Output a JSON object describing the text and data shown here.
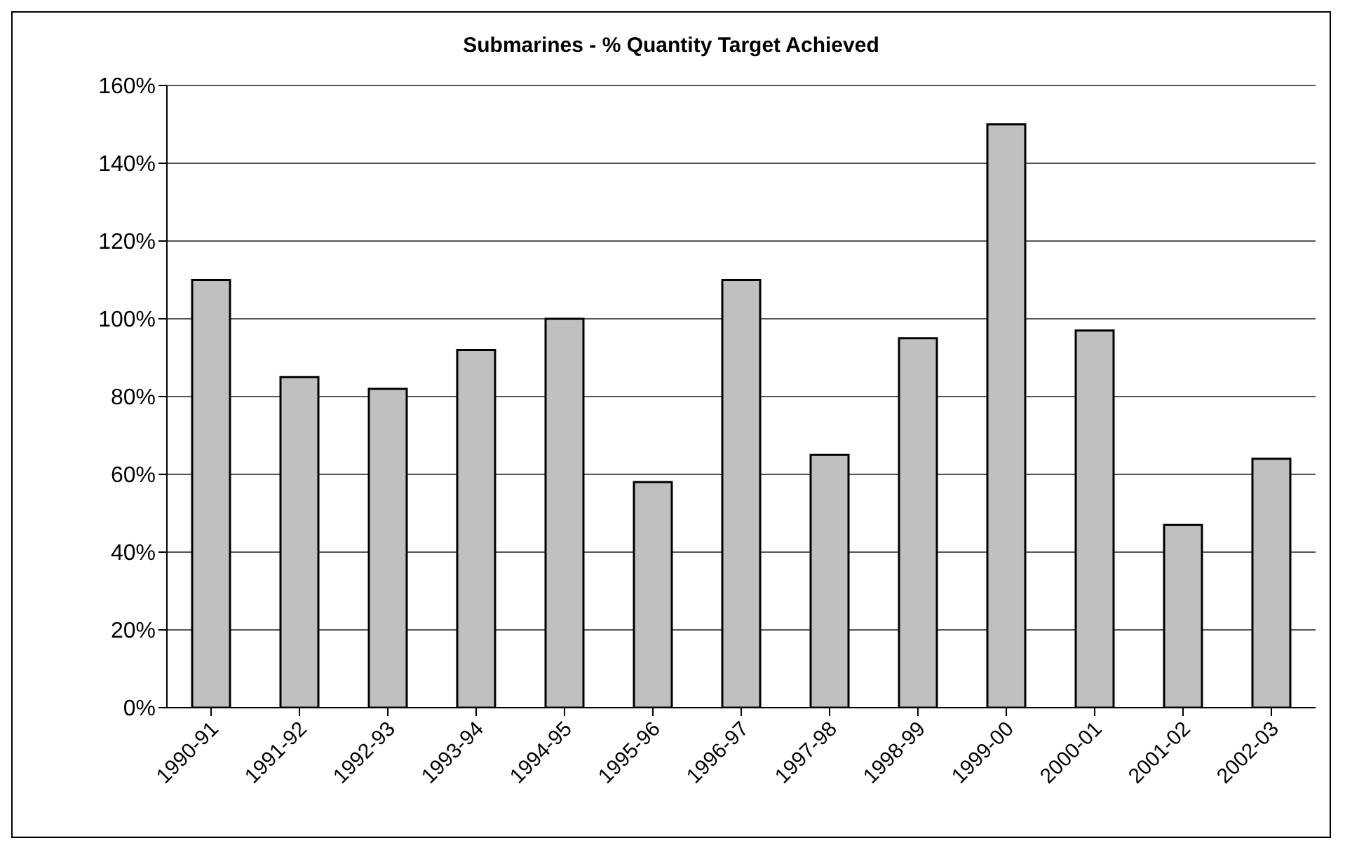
{
  "chart_data": {
    "type": "bar",
    "title": "Submarines - % Quantity Target Achieved",
    "categories": [
      "1990-91",
      "1991-92",
      "1992-93",
      "1993-94",
      "1994-95",
      "1995-96",
      "1996-97",
      "1997-98",
      "1998-99",
      "1999-00",
      "2000-01",
      "2001-02",
      "2002-03"
    ],
    "values": [
      110,
      85,
      82,
      92,
      100,
      58,
      110,
      65,
      95,
      150,
      97,
      47,
      64
    ],
    "color": "#c0c0c0",
    "ylim": [
      0,
      160
    ],
    "yticks": [
      {
        "value": 0,
        "label": "0%"
      },
      {
        "value": 20,
        "label": "20%"
      },
      {
        "value": 40,
        "label": "40%"
      },
      {
        "value": 60,
        "label": "60%"
      },
      {
        "value": 80,
        "label": "80%"
      },
      {
        "value": 100,
        "label": "100%"
      },
      {
        "value": 120,
        "label": "120%"
      },
      {
        "value": 140,
        "label": "140%"
      },
      {
        "value": 160,
        "label": "160%"
      }
    ],
    "grid": "y",
    "legend": false
  }
}
